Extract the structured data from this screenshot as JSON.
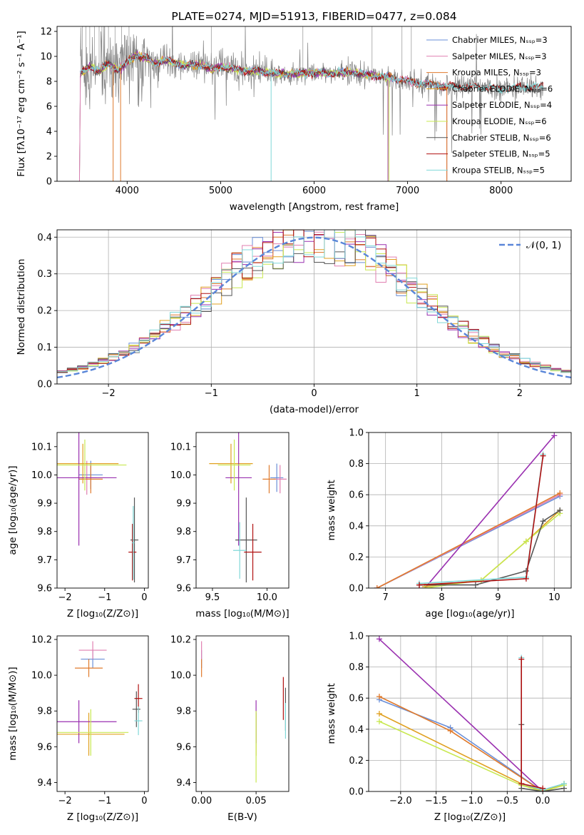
{
  "colors": {
    "chabrier_miles": "#6a8fd8",
    "salpeter_miles": "#e07fb0",
    "kroupa_miles": "#e07a2c",
    "chabrier_elodie": "#e0a020",
    "salpeter_elodie": "#9a30b0",
    "kroupa_elodie": "#c8e850",
    "chabrier_stelib": "#555555",
    "salpeter_stelib": "#b01010",
    "kroupa_stelib": "#80d8d8",
    "normal_curve": "#5a86d8"
  },
  "chart_data": [
    {
      "type": "line",
      "title": "PLATE=0274, MJD=51913, FIBERID=0477, z=0.084",
      "xlabel": "wavelength [Angstrom, rest frame]",
      "ylabel": "Flux [fλ10⁻¹⁷ erg cm⁻² s⁻¹ A⁻¹]",
      "xlim": [
        3250,
        8750
      ],
      "ylim": [
        0,
        12.4
      ],
      "xticks": [
        "4000",
        "5000",
        "6000",
        "7000",
        "8000"
      ],
      "yticks": [
        "0",
        "2",
        "4",
        "6",
        "8",
        "10",
        "12"
      ],
      "legend_position": "top-right",
      "legend": [
        "Chabrier MILES, Nₛₛₚ=3",
        "Salpeter MILES, Nₛₛₚ=3",
        "Kroupa MILES, Nₛₛₚ=3",
        "Chabrier ELODIE, Nₛₛₚ=6",
        "Salpeter ELODIE, Nₛₛₚ=4",
        "Kroupa ELODIE, Nₛₛₚ=6",
        "Chabrier STELIB, Nₛₛₚ=6",
        "Salpeter STELIB, Nₛₛₚ=5",
        "Kroupa STELIB, Nₛₛₚ=5"
      ],
      "continuum": {
        "x": [
          3500,
          3600,
          3700,
          3800,
          3900,
          4000,
          4100,
          4200,
          4300,
          4400,
          4500,
          4600,
          4700,
          4800,
          4900,
          5000,
          5200,
          5400,
          5600,
          5800,
          6000,
          6200,
          6400,
          6600,
          6800,
          7000,
          7200,
          7400,
          7600,
          7800,
          8000,
          8200,
          8400
        ],
        "y": [
          8.6,
          9.2,
          8.8,
          9.4,
          8.9,
          9.5,
          10.1,
          9.9,
          9.4,
          9.7,
          9.5,
          9.3,
          9.3,
          9.3,
          9.0,
          9.2,
          8.9,
          8.8,
          8.6,
          8.6,
          8.7,
          8.6,
          8.7,
          8.5,
          8.3,
          8.0,
          7.8,
          7.6,
          7.6,
          7.5,
          7.4,
          7.5,
          7.6
        ]
      }
    },
    {
      "type": "step",
      "xlabel": "(data-model)/error",
      "ylabel": "Normed distribution",
      "xlim": [
        -2.5,
        2.5
      ],
      "ylim": [
        0,
        0.42
      ],
      "xticks": [
        "−2",
        "−1",
        "0",
        "1",
        "2"
      ],
      "yticks": [
        "0.0",
        "0.1",
        "0.2",
        "0.3",
        "0.4"
      ],
      "legend": [
        "𝒩(0, 1)"
      ],
      "legend_position": "top-right"
    },
    {
      "type": "errorbar",
      "xlabel": "Z [log₁₀(Z/Z⊙)]",
      "ylabel": "age  [log₁₀(age/yr)]",
      "xlim": [
        -2.2,
        0.1
      ],
      "ylim": [
        9.6,
        10.15
      ],
      "xticks": [
        "−2",
        "−1",
        "0"
      ],
      "yticks": [
        "9.6",
        "9.7",
        "9.8",
        "9.9",
        "10.0",
        "10.1"
      ],
      "points": [
        {
          "s": "chabrier_miles",
          "x": -1.35,
          "xe": 0.3,
          "y": 10.0,
          "ye": 0.05
        },
        {
          "s": "salpeter_miles",
          "x": -1.45,
          "xe": 0.25,
          "y": 9.99,
          "ye": 0.06
        },
        {
          "s": "kroupa_miles",
          "x": -1.35,
          "xe": 0.3,
          "y": 9.985,
          "ye": 0.05
        },
        {
          "s": "chabrier_elodie",
          "x": -1.55,
          "xe": 0.9,
          "y": 10.04,
          "ye": 0.07
        },
        {
          "s": "salpeter_elodie",
          "x": -1.65,
          "xe": 0.95,
          "y": 9.99,
          "ye": 0.24
        },
        {
          "s": "kroupa_elodie",
          "x": -1.5,
          "xe": 1.05,
          "y": 10.035,
          "ye": 0.09
        },
        {
          "s": "chabrier_stelib",
          "x": -0.25,
          "xe": 0.1,
          "y": 9.77,
          "ye": 0.15
        },
        {
          "s": "salpeter_stelib",
          "x": -0.3,
          "xe": 0.1,
          "y": 9.727,
          "ye": 0.1
        },
        {
          "s": "kroupa_stelib",
          "x": -0.28,
          "xe": 0.03,
          "y": 9.76,
          "ye": 0.13
        }
      ]
    },
    {
      "type": "errorbar",
      "xlabel": "mass [log₁₀(M/M⊙)]",
      "xlim": [
        9.35,
        10.2
      ],
      "ylim": [
        9.6,
        10.15
      ],
      "xticks": [
        "9.5",
        "10.0"
      ],
      "yticks": [
        "9.6",
        "9.7",
        "9.8",
        "9.9",
        "10.0",
        "10.1"
      ],
      "points": [
        {
          "s": "chabrier_miles",
          "x": 10.09,
          "xe": 0.06,
          "y": 9.99,
          "ye": 0.05
        },
        {
          "s": "salpeter_miles",
          "x": 10.12,
          "xe": 0.06,
          "y": 9.985,
          "ye": 0.05
        },
        {
          "s": "kroupa_miles",
          "x": 10.02,
          "xe": 0.06,
          "y": 9.985,
          "ye": 0.05
        },
        {
          "s": "chabrier_elodie",
          "x": 9.67,
          "xe": 0.2,
          "y": 10.04,
          "ye": 0.07
        },
        {
          "s": "salpeter_elodie",
          "x": 9.74,
          "xe": 0.12,
          "y": 9.99,
          "ye": 0.24
        },
        {
          "s": "kroupa_elodie",
          "x": 9.7,
          "xe": 0.15,
          "y": 10.035,
          "ye": 0.09
        },
        {
          "s": "chabrier_stelib",
          "x": 9.81,
          "xe": 0.1,
          "y": 9.77,
          "ye": 0.15
        },
        {
          "s": "salpeter_stelib",
          "x": 9.87,
          "xe": 0.08,
          "y": 9.727,
          "ye": 0.1
        },
        {
          "s": "kroupa_stelib",
          "x": 9.75,
          "xe": 0.06,
          "y": 9.733,
          "ye": 0.1
        }
      ]
    },
    {
      "type": "line",
      "xlabel": "age  [log₁₀(age/yr)]",
      "ylabel": "mass weight",
      "xlim": [
        6.7,
        10.3
      ],
      "ylim": [
        0,
        1.0
      ],
      "xticks": [
        "7",
        "8",
        "9",
        "10"
      ],
      "yticks": [
        "0.0",
        "0.2",
        "0.4",
        "0.6",
        "0.8",
        "1.0"
      ],
      "series": [
        {
          "s": "chabrier_miles",
          "x": [
            6.85,
            10.1
          ],
          "y": [
            0.0,
            0.59
          ]
        },
        {
          "s": "salpeter_miles",
          "x": [
            6.85,
            10.1
          ],
          "y": [
            0.0,
            0.6
          ]
        },
        {
          "s": "kroupa_miles",
          "x": [
            6.85,
            10.1
          ],
          "y": [
            0.0,
            0.61
          ]
        },
        {
          "s": "salpeter_elodie",
          "x": [
            7.7,
            10.0
          ],
          "y": [
            0.0,
            0.98
          ]
        },
        {
          "s": "chabrier_elodie",
          "x": [
            7.7,
            8.7,
            9.5,
            10.1
          ],
          "y": [
            0.01,
            0.05,
            0.3,
            0.5
          ]
        },
        {
          "s": "kroupa_elodie",
          "x": [
            7.7,
            8.7,
            9.5,
            10.1
          ],
          "y": [
            0.0,
            0.05,
            0.3,
            0.48
          ]
        },
        {
          "s": "chabrier_stelib",
          "x": [
            7.6,
            8.6,
            9.5,
            9.8,
            10.1
          ],
          "y": [
            0.02,
            0.02,
            0.11,
            0.43,
            0.5
          ]
        },
        {
          "s": "kroupa_stelib",
          "x": [
            7.6,
            9.5,
            9.8
          ],
          "y": [
            0.03,
            0.07,
            0.86
          ]
        },
        {
          "s": "salpeter_stelib",
          "x": [
            7.6,
            9.5,
            9.8
          ],
          "y": [
            0.02,
            0.06,
            0.85
          ]
        }
      ]
    },
    {
      "type": "errorbar",
      "xlabel": "Z [log₁₀(Z/Z⊙)]",
      "ylabel": "mass [log₁₀(M/M⊙)]",
      "xlim": [
        -2.2,
        0.1
      ],
      "ylim": [
        9.35,
        10.22
      ],
      "xticks": [
        "−2",
        "−1",
        "0"
      ],
      "yticks": [
        "9.4",
        "9.6",
        "9.8",
        "10.0",
        "10.2"
      ],
      "points": [
        {
          "s": "chabrier_miles",
          "x": -1.3,
          "xe": 0.3,
          "y": 10.09,
          "ye": 0.05
        },
        {
          "s": "salpeter_miles",
          "x": -1.3,
          "xe": 0.35,
          "y": 10.14,
          "ye": 0.05
        },
        {
          "s": "kroupa_miles",
          "x": -1.4,
          "xe": 0.35,
          "y": 10.04,
          "ye": 0.05
        },
        {
          "s": "chabrier_elodie",
          "x": -1.4,
          "xe": 0.9,
          "y": 9.67,
          "ye": 0.12
        },
        {
          "s": "salpeter_elodie",
          "x": -1.65,
          "xe": 0.95,
          "y": 9.74,
          "ye": 0.12
        },
        {
          "s": "kroupa_elodie",
          "x": -1.35,
          "xe": 0.95,
          "y": 9.68,
          "ye": 0.13
        },
        {
          "s": "chabrier_stelib",
          "x": -0.2,
          "xe": 0.1,
          "y": 9.81,
          "ye": 0.1
        },
        {
          "s": "salpeter_stelib",
          "x": -0.15,
          "xe": 0.1,
          "y": 9.87,
          "ye": 0.08
        },
        {
          "s": "kroupa_stelib",
          "x": -0.15,
          "xe": 0.1,
          "y": 9.745,
          "ye": 0.08
        }
      ]
    },
    {
      "type": "errorbar",
      "xlabel": "E(B-V)",
      "xlim": [
        -0.005,
        0.08
      ],
      "ylim": [
        9.35,
        10.22
      ],
      "xticks": [
        "0.00",
        "0.05"
      ],
      "yticks": [
        "9.4",
        "9.6",
        "9.8",
        "10.0",
        "10.2"
      ],
      "points": [
        {
          "s": "chabrier_miles",
          "x": 0.0,
          "xe": 0,
          "y": 10.09,
          "ye": 0.05
        },
        {
          "s": "salpeter_miles",
          "x": 0.0,
          "xe": 0,
          "y": 10.14,
          "ye": 0.05
        },
        {
          "s": "kroupa_miles",
          "x": 0.0,
          "xe": 0,
          "y": 10.04,
          "ye": 0.05
        },
        {
          "s": "chabrier_elodie",
          "x": 0.05,
          "xe": 0,
          "y": 9.67,
          "ye": 0.12
        },
        {
          "s": "salpeter_elodie",
          "x": 0.05,
          "xe": 0,
          "y": 9.74,
          "ye": 0.12
        },
        {
          "s": "kroupa_elodie",
          "x": 0.05,
          "xe": 0,
          "y": 9.6,
          "ye": 0.2
        },
        {
          "s": "chabrier_stelib",
          "x": 0.077,
          "xe": 0,
          "y": 9.81,
          "ye": 0.12
        },
        {
          "s": "salpeter_stelib",
          "x": 0.075,
          "xe": 0,
          "y": 9.87,
          "ye": 0.12
        },
        {
          "s": "kroupa_stelib",
          "x": 0.077,
          "xe": 0,
          "y": 9.745,
          "ye": 0.1
        }
      ]
    },
    {
      "type": "line",
      "xlabel": "Z [log₁₀(Z/Z⊙)]",
      "ylabel": "mass weight",
      "xlim": [
        -2.45,
        0.4
      ],
      "ylim": [
        0,
        1.0
      ],
      "xticks": [
        "−2.0",
        "−1.5",
        "−1.0",
        "−0.5",
        "0.0"
      ],
      "yticks": [
        "0.0",
        "0.2",
        "0.4",
        "0.6",
        "0.8",
        "1.0"
      ],
      "series": [
        {
          "s": "salpeter_elodie",
          "x": [
            -2.3,
            0.0
          ],
          "y": [
            0.98,
            0.0
          ]
        },
        {
          "s": "chabrier_miles",
          "x": [
            -2.3,
            -1.3,
            0.0
          ],
          "y": [
            0.59,
            0.41,
            0.0
          ]
        },
        {
          "s": "kroupa_miles",
          "x": [
            -2.3,
            -1.3,
            0.0
          ],
          "y": [
            0.61,
            0.39,
            0.0
          ]
        },
        {
          "s": "chabrier_elodie",
          "x": [
            -2.3,
            -0.3,
            0.0,
            0.3
          ],
          "y": [
            0.5,
            0.05,
            0.0,
            0.05
          ]
        },
        {
          "s": "kroupa_elodie",
          "x": [
            -2.3,
            -0.3,
            0.0,
            0.3
          ],
          "y": [
            0.45,
            0.04,
            0.0,
            0.04
          ]
        },
        {
          "s": "chabrier_stelib",
          "x": [
            -0.3,
            -0.3,
            0.0,
            0.3
          ],
          "y": [
            0.43,
            0.02,
            0.0,
            0.02
          ]
        },
        {
          "s": "kroupa_stelib",
          "x": [
            -0.3,
            -0.3,
            0.0,
            0.3
          ],
          "y": [
            0.86,
            0.05,
            0.01,
            0.05
          ]
        },
        {
          "s": "salpeter_stelib",
          "x": [
            -0.3,
            -0.3,
            0.0
          ],
          "y": [
            0.85,
            0.05,
            0.02
          ]
        }
      ]
    }
  ]
}
